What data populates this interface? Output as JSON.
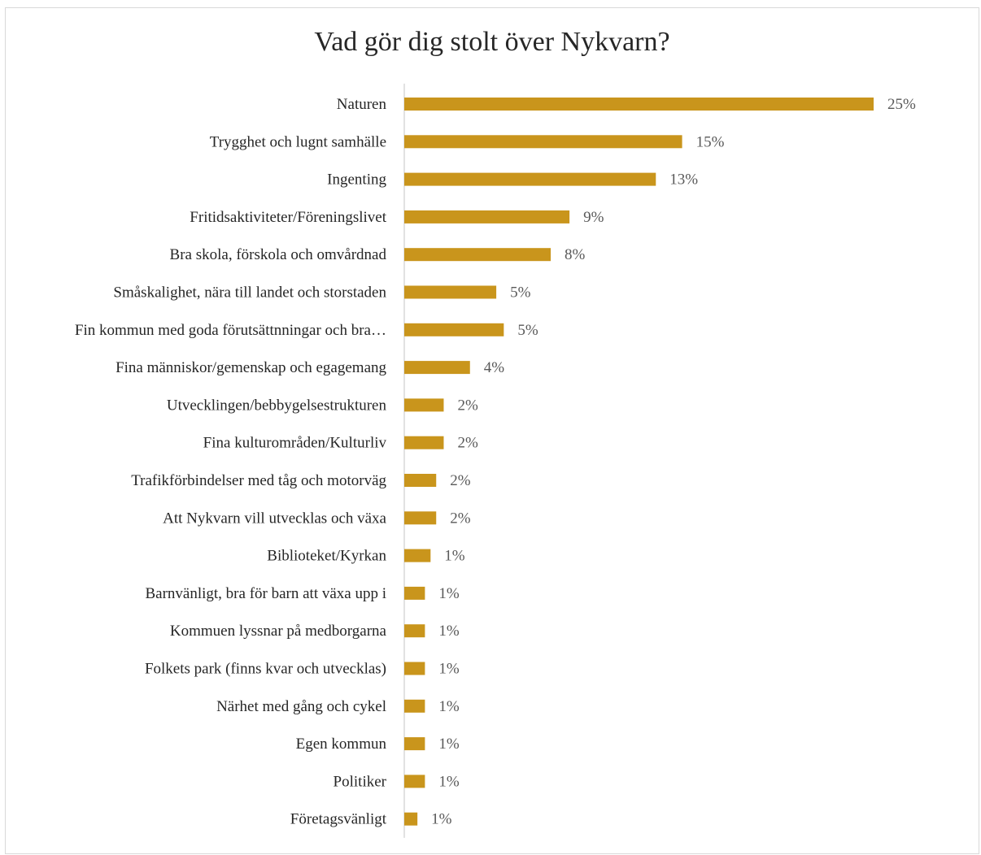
{
  "colors": {
    "bar": "#C9951C",
    "axis": "#d9d9d9",
    "category_text": "#262626",
    "value_text": "#595959"
  },
  "chart_data": {
    "type": "bar",
    "orientation": "horizontal",
    "title": "Vad gör dig stolt över Nykvarn?",
    "xlabel": "",
    "ylabel": "",
    "grid": false,
    "legend": "none",
    "xlim": [
      0,
      0.27
    ],
    "categories": [
      "Naturen",
      "Trygghet och lugnt samhälle",
      "Ingenting",
      "Fritidsaktiviteter/Föreningslivet",
      "Bra skola, förskola och omvårdnad",
      "Småskalighet, nära till landet och storstaden",
      "Fin kommun med goda förutsättnningar och bra…",
      "Fina människor/gemenskap och egagemang",
      "Utvecklingen/bebbygelsestrukturen",
      "Fina kulturområden/Kulturliv",
      "Trafikförbindelser med tåg och motorväg",
      "Att Nykvarn vill utvecklas och växa",
      "Biblioteket/Kyrkan",
      "Barnvänligt, bra för barn att växa upp i",
      "Kommuen lyssnar på medborgarna",
      "Folkets park (finns kvar och utvecklas)",
      "Närhet med gång och cykel",
      "Egen kommun",
      "Politiker",
      "Företagsvänligt"
    ],
    "values": [
      0.25,
      0.148,
      0.134,
      0.088,
      0.078,
      0.049,
      0.053,
      0.035,
      0.021,
      0.021,
      0.017,
      0.017,
      0.014,
      0.011,
      0.011,
      0.011,
      0.011,
      0.011,
      0.011,
      0.007
    ],
    "data_labels": [
      "25%",
      "15%",
      "13%",
      "9%",
      "8%",
      "5%",
      "5%",
      "4%",
      "2%",
      "2%",
      "2%",
      "2%",
      "1%",
      "1%",
      "1%",
      "1%",
      "1%",
      "1%",
      "1%",
      "1%"
    ]
  }
}
